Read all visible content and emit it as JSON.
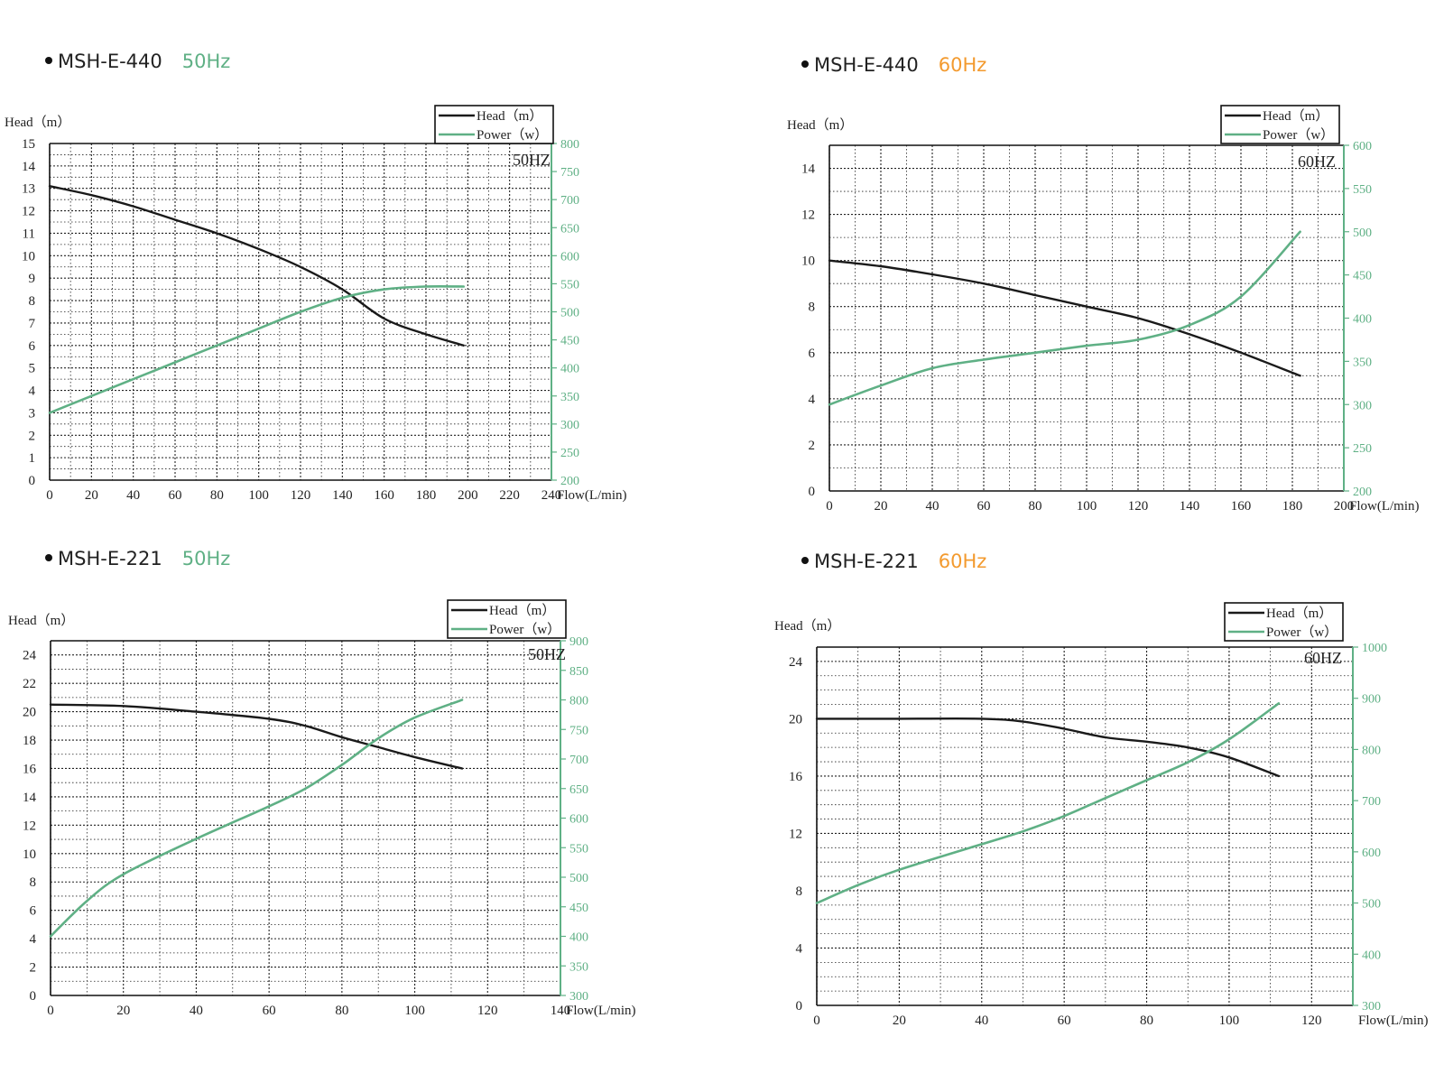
{
  "colors": {
    "head": "#1a1a1a",
    "power": "#5fb085",
    "freq_50": "#5fb085",
    "freq_60": "#f39a2e",
    "grid": "#222222"
  },
  "legend": {
    "head": "Head（m）",
    "power": "Power（w）"
  },
  "panels": [
    {
      "model": "MSH-E-440",
      "freq": "50Hz"
    },
    {
      "model": "MSH-E-440",
      "freq": "60Hz"
    },
    {
      "model": "MSH-E-221",
      "freq": "50Hz"
    },
    {
      "model": "MSH-E-221",
      "freq": "60Hz"
    }
  ],
  "chart_data": [
    {
      "type": "line",
      "title": "MSH-E-440 50Hz",
      "annotation": "50HZ",
      "xlabel": "Flow(L/min)",
      "ylabel": "Head（m）",
      "xlim": [
        0,
        240
      ],
      "x_ticks": [
        0,
        20,
        40,
        60,
        80,
        100,
        120,
        140,
        160,
        180,
        200,
        220,
        240
      ],
      "x_minor": 10,
      "ylim": [
        0,
        15
      ],
      "y_ticks": [
        0,
        1,
        2,
        3,
        4,
        5,
        6,
        7,
        8,
        9,
        10,
        11,
        12,
        13,
        14,
        15
      ],
      "y_minor": 0.5,
      "y2lim": [
        200,
        800
      ],
      "y2_ticks": [
        200,
        250,
        300,
        350,
        400,
        450,
        500,
        550,
        600,
        650,
        700,
        750,
        800
      ],
      "grid": true,
      "legend": "top-right",
      "series": [
        {
          "name": "Head（m）",
          "axis": "left",
          "points": [
            [
              0,
              13.1
            ],
            [
              20,
              12.7
            ],
            [
              40,
              12.2
            ],
            [
              60,
              11.6
            ],
            [
              80,
              11
            ],
            [
              100,
              10.3
            ],
            [
              120,
              9.5
            ],
            [
              140,
              8.5
            ],
            [
              160,
              7.2
            ],
            [
              180,
              6.5
            ],
            [
              198,
              6
            ]
          ]
        },
        {
          "name": "Power（w）",
          "axis": "right",
          "points": [
            [
              0,
              320
            ],
            [
              20,
              350
            ],
            [
              40,
              380
            ],
            [
              60,
              410
            ],
            [
              80,
              440
            ],
            [
              100,
              470
            ],
            [
              120,
              500
            ],
            [
              140,
              525
            ],
            [
              160,
              540
            ],
            [
              180,
              545
            ],
            [
              198,
              545
            ]
          ]
        }
      ]
    },
    {
      "type": "line",
      "title": "MSH-E-440 60Hz",
      "annotation": "60HZ",
      "xlabel": "Flow(L/min)",
      "ylabel": "Head（m）",
      "xlim": [
        0,
        200
      ],
      "x_ticks": [
        0,
        20,
        40,
        60,
        80,
        100,
        120,
        140,
        160,
        180,
        200
      ],
      "x_minor": 10,
      "ylim": [
        0,
        15
      ],
      "y_ticks": [
        0,
        2,
        4,
        6,
        8,
        10,
        12,
        14
      ],
      "y_minor": 1,
      "y2lim": [
        200,
        600
      ],
      "y2_ticks": [
        200,
        250,
        300,
        350,
        400,
        450,
        500,
        550,
        600
      ],
      "grid": true,
      "legend": "top-right",
      "series": [
        {
          "name": "Head（m）",
          "axis": "left",
          "points": [
            [
              0,
              10
            ],
            [
              20,
              9.75
            ],
            [
              40,
              9.4
            ],
            [
              60,
              9
            ],
            [
              80,
              8.5
            ],
            [
              100,
              8
            ],
            [
              120,
              7.5
            ],
            [
              140,
              6.8
            ],
            [
              160,
              6
            ],
            [
              183,
              5
            ]
          ]
        },
        {
          "name": "Power（w）",
          "axis": "right",
          "points": [
            [
              0,
              300
            ],
            [
              20,
              322
            ],
            [
              40,
              342
            ],
            [
              60,
              352
            ],
            [
              80,
              360
            ],
            [
              100,
              368
            ],
            [
              120,
              375
            ],
            [
              140,
              392
            ],
            [
              160,
              425
            ],
            [
              183,
              500
            ]
          ]
        }
      ]
    },
    {
      "type": "line",
      "title": "MSH-E-221 50Hz",
      "annotation": "50HZ",
      "xlabel": "Flow(L/min)",
      "ylabel": "Head（m）",
      "xlim": [
        0,
        140
      ],
      "x_ticks": [
        0,
        20,
        40,
        60,
        80,
        100,
        120,
        140
      ],
      "x_minor": 10,
      "ylim": [
        0,
        25
      ],
      "y_ticks": [
        0,
        2,
        4,
        6,
        8,
        10,
        12,
        14,
        16,
        18,
        20,
        22,
        24
      ],
      "y_minor": 1,
      "y2lim": [
        300,
        900
      ],
      "y2_ticks": [
        300,
        350,
        400,
        450,
        500,
        550,
        600,
        650,
        700,
        750,
        800,
        850,
        900
      ],
      "grid": true,
      "legend": "top-right",
      "series": [
        {
          "name": "Head（m）",
          "axis": "left",
          "points": [
            [
              0,
              20.5
            ],
            [
              20,
              20.4
            ],
            [
              40,
              20
            ],
            [
              60,
              19.5
            ],
            [
              70,
              19
            ],
            [
              80,
              18.2
            ],
            [
              90,
              17.5
            ],
            [
              100,
              16.8
            ],
            [
              113,
              16
            ]
          ]
        },
        {
          "name": "Power（w）",
          "axis": "right",
          "points": [
            [
              0,
              400
            ],
            [
              10,
              460
            ],
            [
              20,
              505
            ],
            [
              40,
              565
            ],
            [
              60,
              620
            ],
            [
              70,
              650
            ],
            [
              80,
              690
            ],
            [
              90,
              735
            ],
            [
              100,
              770
            ],
            [
              113,
              800
            ]
          ]
        }
      ]
    },
    {
      "type": "line",
      "title": "MSH-E-221 60Hz",
      "annotation": "60HZ",
      "xlabel": "Flow(L/min)",
      "ylabel": "Head（m）",
      "xlim": [
        0,
        130
      ],
      "x_ticks": [
        0,
        20,
        40,
        60,
        80,
        100,
        120
      ],
      "x_minor": 10,
      "ylim": [
        0,
        25
      ],
      "y_ticks": [
        0,
        4,
        8,
        12,
        16,
        20,
        24
      ],
      "y_minor": 1,
      "y2lim": [
        300,
        1000
      ],
      "y2_ticks": [
        300,
        400,
        500,
        600,
        700,
        800,
        900,
        1000
      ],
      "grid": true,
      "legend": "top-right",
      "series": [
        {
          "name": "Head（m）",
          "axis": "left",
          "points": [
            [
              0,
              20
            ],
            [
              20,
              20
            ],
            [
              40,
              20
            ],
            [
              50,
              19.8
            ],
            [
              60,
              19.3
            ],
            [
              70,
              18.7
            ],
            [
              80,
              18.4
            ],
            [
              90,
              18
            ],
            [
              100,
              17.3
            ],
            [
              112,
              16
            ]
          ]
        },
        {
          "name": "Power（w）",
          "axis": "right",
          "points": [
            [
              0,
              500
            ],
            [
              10,
              535
            ],
            [
              20,
              565
            ],
            [
              40,
              615
            ],
            [
              50,
              640
            ],
            [
              60,
              670
            ],
            [
              70,
              705
            ],
            [
              80,
              740
            ],
            [
              90,
              775
            ],
            [
              100,
              820
            ],
            [
              112,
              890
            ]
          ]
        }
      ]
    }
  ]
}
